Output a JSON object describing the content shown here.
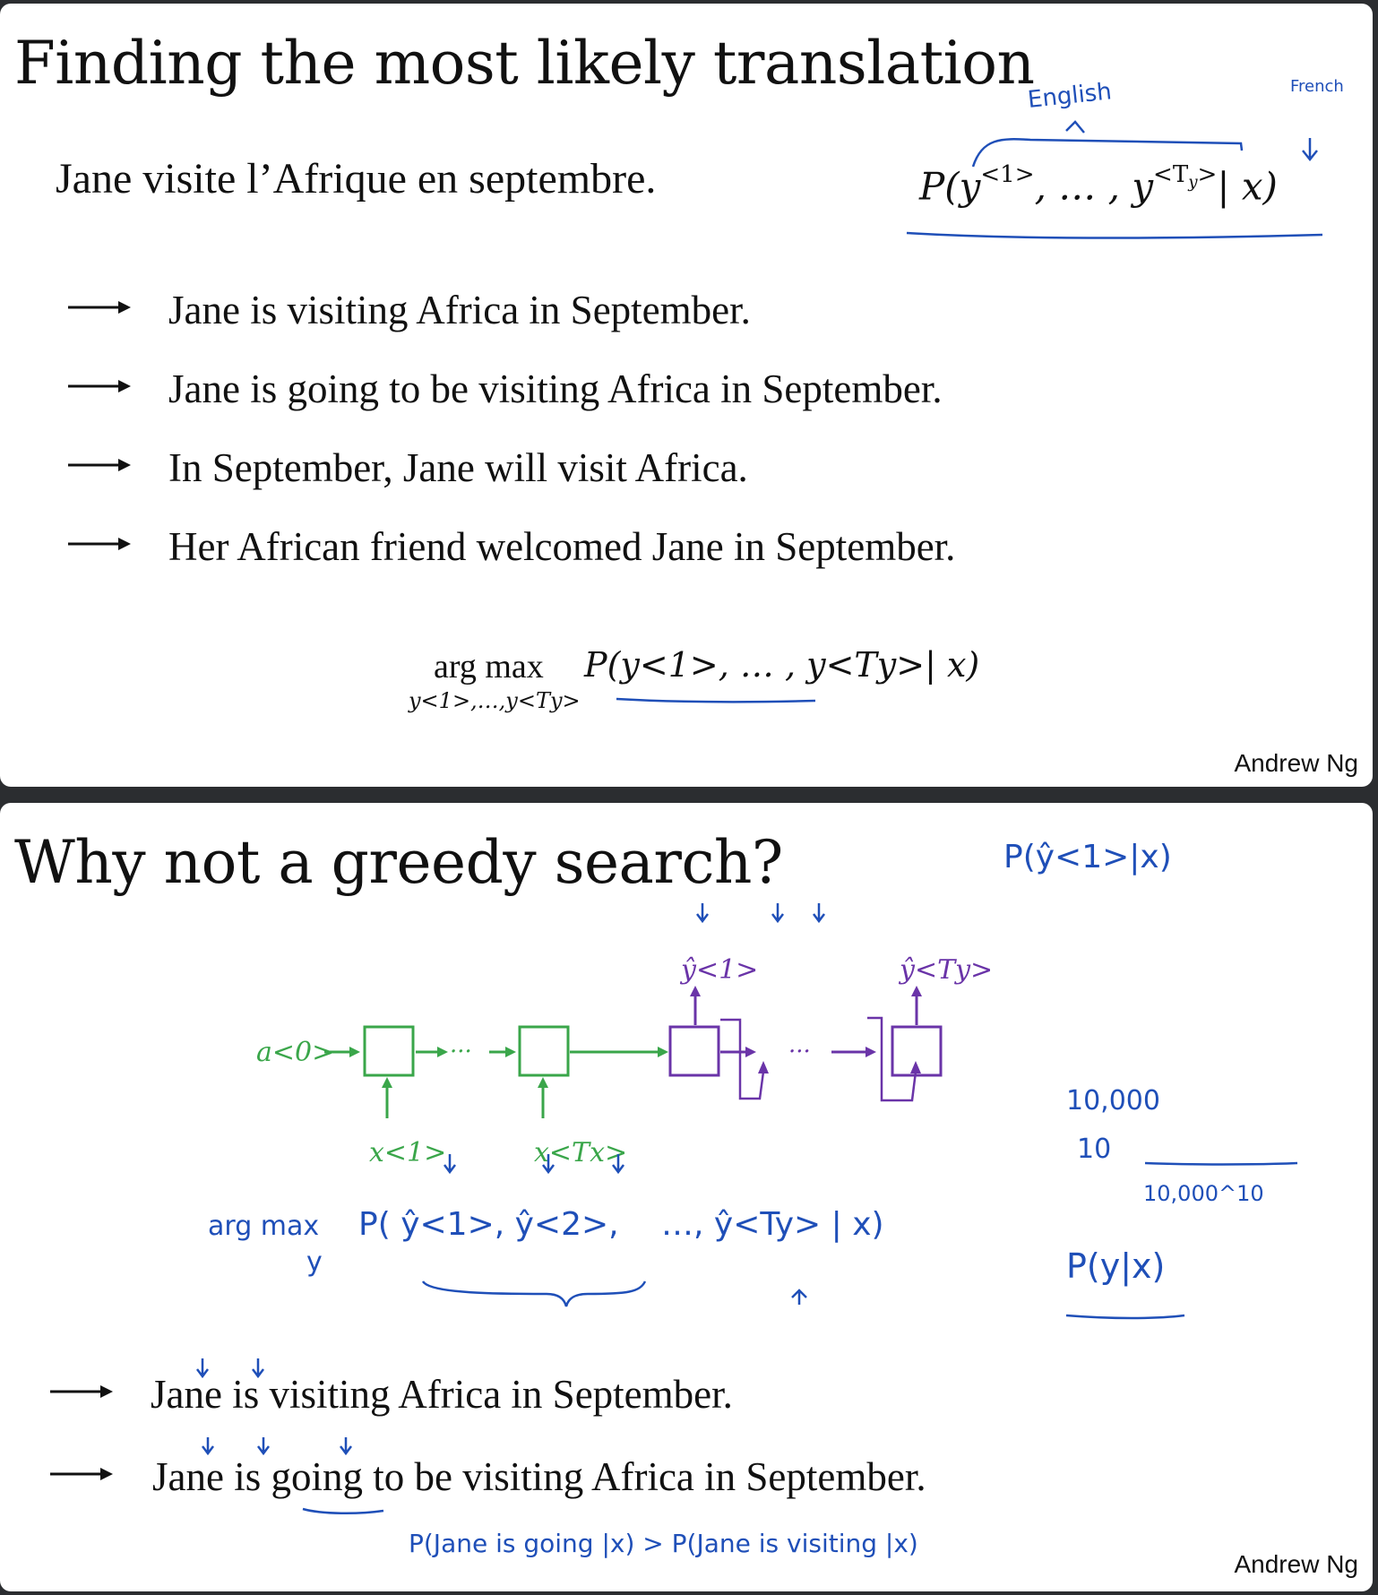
{
  "slide1": {
    "title": "Finding the most likely translation",
    "source_sentence": "Jane visite l’Afrique en septembre.",
    "prob": {
      "prefix": "P(y",
      "s1": "<1>",
      "mid": ", … , y",
      "s2": "<T",
      "s2sub": "y",
      "s2end": ">",
      "tail": "| x)"
    },
    "annotations": {
      "english": "English",
      "french": "French"
    },
    "candidates": [
      "Jane is visiting Africa in September.",
      "Jane is going to be visiting Africa in September.",
      "In September, Jane will visit Africa.",
      "Her African friend welcomed Jane in September."
    ],
    "argmax": {
      "op": "arg max",
      "under": "y<1>,…,y<Ty>",
      "expr": "P(y<1>, … , y<Ty>| x)"
    },
    "footer": "Andrew Ng"
  },
  "slide2": {
    "title": "Why not a greedy search?",
    "rnn": {
      "a0": "a<0>",
      "x1": "x<1>",
      "xTx": "x<Tx>",
      "yhat1": "ŷ<1>",
      "yhatTy": "ŷ<Ty>"
    },
    "annotations": {
      "p_yhat1": "P(ŷ<1>|x)",
      "vocab": "10,000",
      "ten": "10",
      "space": "10,000^10",
      "pyx": "P(y|x)",
      "argmax_hand": "arg max",
      "argmax_y": "y",
      "argmax_expr_1": "P( ŷ<1>, ŷ<2>,",
      "argmax_expr_2": "…, ŷ<Ty> | x)",
      "compare": "P(Jane is going |x) > P(Jane is visiting |x)"
    },
    "candidates": [
      "Jane is visiting Africa in September.",
      "Jane is going to be visiting Africa in September."
    ],
    "footer": "Andrew Ng"
  },
  "colors": {
    "ink_blue": "#1f4fb8",
    "rnn_green": "#3aa64a",
    "rnn_purple": "#6a34a8",
    "text": "#111111"
  }
}
